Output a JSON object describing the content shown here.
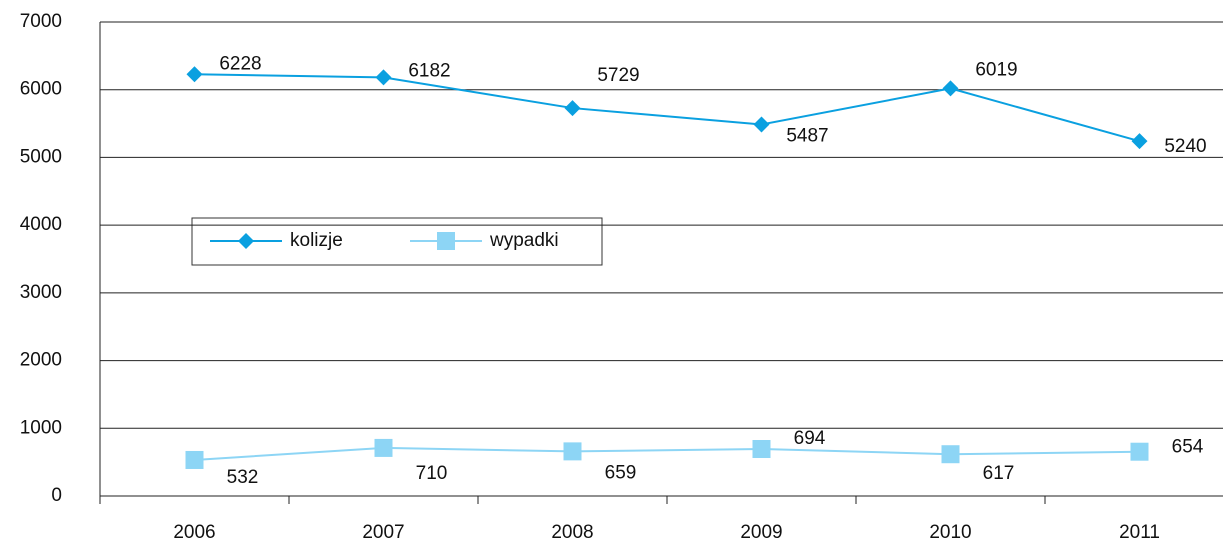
{
  "chart_data": {
    "type": "line",
    "categories": [
      "2006",
      "2007",
      "2008",
      "2009",
      "2010",
      "2011"
    ],
    "series": [
      {
        "name": "kolizje",
        "color": "#0aa0e0",
        "marker": "diamond",
        "values": [
          6228,
          6182,
          5729,
          5487,
          6019,
          5240
        ]
      },
      {
        "name": "wypadki",
        "color": "#8dd5f5",
        "marker": "square",
        "values": [
          532,
          710,
          659,
          694,
          617,
          654
        ]
      }
    ],
    "ylim": [
      0,
      7000
    ],
    "yticks": [
      0,
      1000,
      2000,
      3000,
      4000,
      5000,
      6000,
      7000
    ],
    "grid": true,
    "data_labels": true
  }
}
